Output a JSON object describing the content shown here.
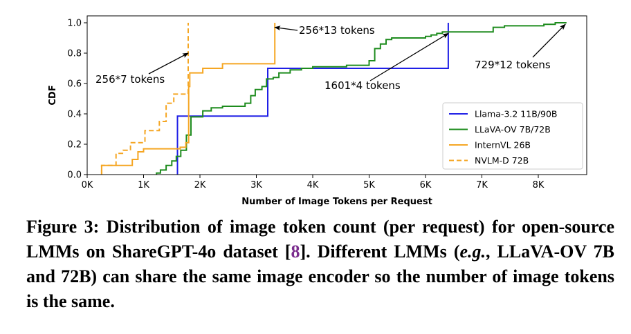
{
  "chart_data": {
    "type": "line",
    "subtype": "step-cdf",
    "xlabel": "Number of Image Tokens per Request",
    "ylabel": "CDF",
    "xlim": [
      0,
      8800
    ],
    "ylim": [
      0,
      1.0
    ],
    "x_ticks": [
      0,
      1000,
      2000,
      3000,
      4000,
      5000,
      6000,
      7000,
      8000
    ],
    "x_tick_labels": [
      "0K",
      "1K",
      "2K",
      "3K",
      "4K",
      "5K",
      "6K",
      "7K",
      "8K"
    ],
    "y_ticks": [
      0.0,
      0.2,
      0.4,
      0.6,
      0.8,
      1.0
    ],
    "y_tick_labels": [
      "0.0",
      "0.2",
      "0.4",
      "0.6",
      "0.8",
      "1.0"
    ],
    "grid": false,
    "legend_position": "lower-right",
    "series": [
      {
        "name": "Llama-3.2 11B/90B",
        "color": "#1f1fe6",
        "style": "solid",
        "points": [
          [
            1601,
            0
          ],
          [
            1601,
            0.385
          ],
          [
            3202,
            0.385
          ],
          [
            3202,
            0.7
          ],
          [
            6404,
            0.7
          ],
          [
            6404,
            1.0
          ]
        ]
      },
      {
        "name": "LLaVA-OV 7B/72B",
        "color": "#1e8c1e",
        "style": "solid",
        "points": [
          [
            1230,
            0
          ],
          [
            1230,
            0.01
          ],
          [
            1300,
            0.01
          ],
          [
            1300,
            0.03
          ],
          [
            1400,
            0.03
          ],
          [
            1400,
            0.06
          ],
          [
            1500,
            0.06
          ],
          [
            1500,
            0.09
          ],
          [
            1580,
            0.09
          ],
          [
            1580,
            0.12
          ],
          [
            1660,
            0.12
          ],
          [
            1660,
            0.16
          ],
          [
            1760,
            0.16
          ],
          [
            1760,
            0.26
          ],
          [
            1840,
            0.26
          ],
          [
            1840,
            0.38
          ],
          [
            2050,
            0.38
          ],
          [
            2050,
            0.42
          ],
          [
            2200,
            0.42
          ],
          [
            2200,
            0.44
          ],
          [
            2400,
            0.44
          ],
          [
            2400,
            0.45
          ],
          [
            2800,
            0.45
          ],
          [
            2800,
            0.47
          ],
          [
            2900,
            0.47
          ],
          [
            2900,
            0.52
          ],
          [
            2980,
            0.52
          ],
          [
            2980,
            0.56
          ],
          [
            3100,
            0.56
          ],
          [
            3100,
            0.58
          ],
          [
            3180,
            0.58
          ],
          [
            3180,
            0.63
          ],
          [
            3300,
            0.63
          ],
          [
            3300,
            0.64
          ],
          [
            3400,
            0.64
          ],
          [
            3400,
            0.67
          ],
          [
            3600,
            0.67
          ],
          [
            3600,
            0.69
          ],
          [
            3800,
            0.69
          ],
          [
            3800,
            0.7
          ],
          [
            4000,
            0.7
          ],
          [
            4000,
            0.71
          ],
          [
            4600,
            0.71
          ],
          [
            4600,
            0.72
          ],
          [
            5000,
            0.72
          ],
          [
            5000,
            0.75
          ],
          [
            5100,
            0.75
          ],
          [
            5100,
            0.83
          ],
          [
            5200,
            0.83
          ],
          [
            5200,
            0.86
          ],
          [
            5300,
            0.86
          ],
          [
            5300,
            0.89
          ],
          [
            5400,
            0.89
          ],
          [
            5400,
            0.9
          ],
          [
            6000,
            0.9
          ],
          [
            6000,
            0.91
          ],
          [
            6100,
            0.91
          ],
          [
            6100,
            0.92
          ],
          [
            6200,
            0.92
          ],
          [
            6200,
            0.93
          ],
          [
            6300,
            0.93
          ],
          [
            6300,
            0.94
          ],
          [
            7200,
            0.94
          ],
          [
            7200,
            0.97
          ],
          [
            7400,
            0.97
          ],
          [
            7400,
            0.98
          ],
          [
            8100,
            0.98
          ],
          [
            8100,
            0.99
          ],
          [
            8300,
            0.99
          ],
          [
            8300,
            1.0
          ],
          [
            8500,
            1.0
          ]
        ]
      },
      {
        "name": "InternVL 26B",
        "color": "#f5a623",
        "style": "solid",
        "points": [
          [
            256,
            0
          ],
          [
            256,
            0.06
          ],
          [
            800,
            0.06
          ],
          [
            800,
            0.1
          ],
          [
            900,
            0.1
          ],
          [
            900,
            0.15
          ],
          [
            1000,
            0.15
          ],
          [
            1000,
            0.17
          ],
          [
            1650,
            0.17
          ],
          [
            1650,
            0.18
          ],
          [
            1750,
            0.18
          ],
          [
            1750,
            0.21
          ],
          [
            1800,
            0.21
          ],
          [
            1800,
            0.58
          ],
          [
            1820,
            0.58
          ],
          [
            1820,
            0.67
          ],
          [
            2050,
            0.67
          ],
          [
            2050,
            0.7
          ],
          [
            2400,
            0.7
          ],
          [
            2400,
            0.73
          ],
          [
            3328,
            0.73
          ],
          [
            3328,
            1.0
          ]
        ]
      },
      {
        "name": "NVLM-D 72B",
        "color": "#f5a623",
        "style": "dashed",
        "points": [
          [
            256,
            0
          ],
          [
            256,
            0.06
          ],
          [
            512,
            0.06
          ],
          [
            512,
            0.14
          ],
          [
            640,
            0.14
          ],
          [
            640,
            0.16
          ],
          [
            768,
            0.16
          ],
          [
            768,
            0.21
          ],
          [
            1024,
            0.21
          ],
          [
            1024,
            0.29
          ],
          [
            1280,
            0.29
          ],
          [
            1280,
            0.35
          ],
          [
            1400,
            0.35
          ],
          [
            1400,
            0.47
          ],
          [
            1536,
            0.47
          ],
          [
            1536,
            0.53
          ],
          [
            1792,
            0.53
          ],
          [
            1792,
            0.97
          ],
          [
            1792,
            1.0
          ]
        ]
      }
    ],
    "annotations": [
      {
        "text": "256*7 tokens",
        "target": [
          1792,
          0.8
        ]
      },
      {
        "text": "256*13 tokens",
        "target": [
          3328,
          0.97
        ]
      },
      {
        "text": "1601*4 tokens",
        "target": [
          6404,
          0.93
        ]
      },
      {
        "text": "729*12 tokens",
        "target": [
          8480,
          0.99
        ]
      }
    ]
  },
  "caption": {
    "prefix": "Figure 3: Distribution of image token count (per request) for open-source LMMs on ShareGPT-4o dataset [",
    "ref": "8",
    "middle": "]. Different LMMs (",
    "eg": "e.g.",
    "suffix": ", LLaVA-OV 7B and 72B) can share the same image encoder so the number of image tokens is the same."
  }
}
